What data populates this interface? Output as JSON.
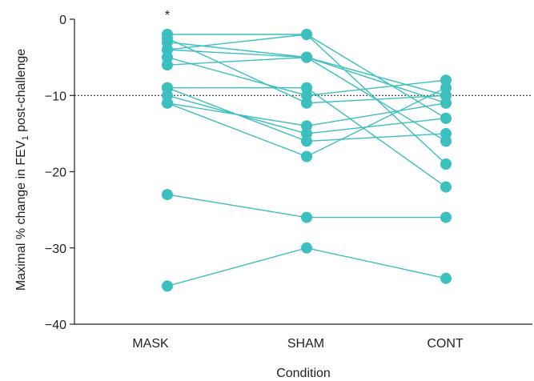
{
  "chart_data": {
    "type": "line",
    "categories": [
      "MASK",
      "SHAM",
      "CONT"
    ],
    "ylabel_main": "Maximal % change in FEV",
    "ylabel_sub": "1",
    "ylabel_tail": " post-challenge",
    "xlabel": "Condition",
    "ylim": [
      -40,
      0
    ],
    "yticks": [
      0,
      -10,
      -20,
      -30,
      -40
    ],
    "ytick_labels": [
      "0",
      "−10",
      "−20",
      "−30",
      "−40"
    ],
    "reference_line": -10,
    "annotation": "*",
    "color": "#3bbfbf",
    "subjects": [
      [
        -2,
        -2,
        -13
      ],
      [
        -3,
        -5,
        -11
      ],
      [
        -4,
        -2,
        -19
      ],
      [
        -5,
        -10,
        -8
      ],
      [
        -6,
        -5,
        -10
      ],
      [
        -2.5,
        -11,
        -10
      ],
      [
        -9,
        -9,
        -22
      ],
      [
        -10,
        -15,
        -13
      ],
      [
        -11,
        -18,
        -9
      ],
      [
        -11,
        -14,
        -11
      ],
      [
        -9,
        -16,
        -15
      ],
      [
        -4,
        -5,
        -16
      ],
      [
        -23,
        -26,
        -26
      ],
      [
        -35,
        -30,
        -34
      ]
    ]
  }
}
